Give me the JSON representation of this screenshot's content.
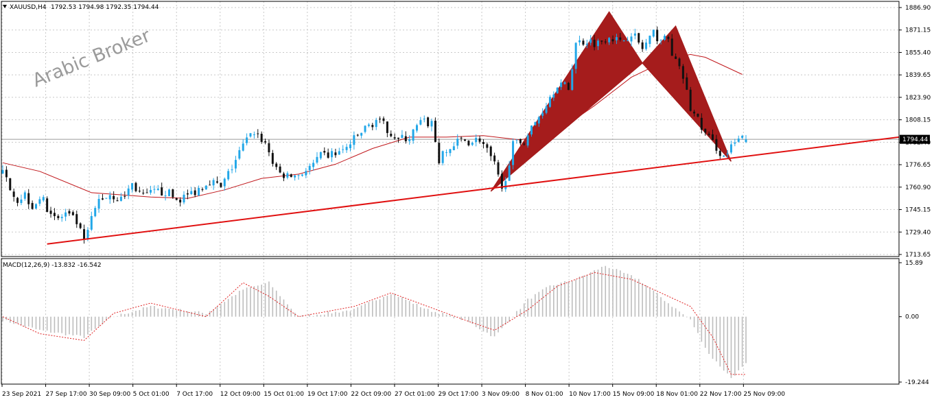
{
  "header": {
    "symbol_label": "XAUUSD,H4",
    "ohlc_label": "1792.53 1794.98 1792.35 1794.44",
    "macd_label": "MACD(12,26,9) -13.832 -16.542"
  },
  "watermark": "Arabic Broker",
  "colors": {
    "bull": "#22a7e8",
    "bear": "#111111",
    "ma": "#c0161a",
    "trendline": "#e01010",
    "pattern": "#a51c1c",
    "signal": "#e02020",
    "histogram": "#bdbdbd",
    "grid": "#c8c8c8",
    "price_box": "#000000"
  },
  "chart_data": [
    {
      "type": "candlestick",
      "title": "XAUUSD,H4",
      "timeframe": "H4",
      "ylim": [
        1713.65,
        1886.9
      ],
      "yticks": [
        "1886.90",
        "1871.15",
        "1855.40",
        "1839.65",
        "1823.90",
        "1808.15",
        "1792.40",
        "1776.65",
        "1760.90",
        "1745.15",
        "1729.40",
        "1713.65"
      ],
      "xticks": [
        "23 Sep 2021",
        "27 Sep 17:00",
        "30 Sep 09:00",
        "5 Oct 01:00",
        "7 Oct 17:00",
        "12 Oct 09:00",
        "15 Oct 01:00",
        "19 Oct 17:00",
        "22 Oct 09:00",
        "27 Oct 01:00",
        "29 Oct 17:00",
        "3 Nov 09:00",
        "8 Nov 01:00",
        "10 Nov 17:00",
        "15 Nov 09:00",
        "18 Nov 01:00",
        "22 Nov 17:00",
        "25 Nov 09:00"
      ],
      "last_price": "1794.44",
      "last_ohlc": [
        1792.53,
        1794.98,
        1792.35,
        1794.44
      ],
      "close_path": [
        [
          0,
          1770
        ],
        [
          2,
          1762
        ],
        [
          4,
          1752
        ],
        [
          6,
          1756
        ],
        [
          8,
          1748
        ],
        [
          10,
          1754
        ],
        [
          12,
          1747
        ],
        [
          15,
          1738
        ],
        [
          17,
          1742
        ],
        [
          20,
          1736
        ],
        [
          22,
          1722
        ],
        [
          24,
          1738
        ],
        [
          26,
          1752
        ],
        [
          29,
          1756
        ],
        [
          32,
          1752
        ],
        [
          35,
          1763
        ],
        [
          38,
          1754
        ],
        [
          41,
          1757
        ],
        [
          44,
          1758
        ],
        [
          47,
          1752
        ],
        [
          50,
          1755
        ],
        [
          53,
          1760
        ],
        [
          56,
          1766
        ],
        [
          59,
          1760
        ],
        [
          62,
          1775
        ],
        [
          65,
          1790
        ],
        [
          68,
          1800
        ],
        [
          71,
          1792
        ],
        [
          74,
          1772
        ],
        [
          77,
          1768
        ],
        [
          80,
          1770
        ],
        [
          83,
          1774
        ],
        [
          86,
          1782
        ],
        [
          89,
          1784
        ],
        [
          92,
          1786
        ],
        [
          95,
          1794
        ],
        [
          98,
          1802
        ],
        [
          101,
          1808
        ],
        [
          104,
          1802
        ],
        [
          107,
          1794
        ],
        [
          110,
          1796
        ],
        [
          113,
          1806
        ],
        [
          116,
          1806
        ],
        [
          118,
          1780
        ],
        [
          121,
          1788
        ],
        [
          124,
          1794
        ],
        [
          127,
          1793
        ],
        [
          129,
          1795
        ],
        [
          131,
          1786
        ],
        [
          133,
          1776
        ],
        [
          135,
          1758
        ],
        [
          138,
          1790
        ],
        [
          141,
          1794
        ],
        [
          144,
          1806
        ],
        [
          147,
          1820
        ],
        [
          150,
          1834
        ],
        [
          153,
          1830
        ],
        [
          155,
          1862
        ],
        [
          158,
          1864
        ],
        [
          161,
          1862
        ],
        [
          164,
          1868
        ],
        [
          167,
          1862
        ],
        [
          170,
          1870
        ],
        [
          173,
          1858
        ],
        [
          176,
          1868
        ],
        [
          178,
          1865
        ],
        [
          180,
          1864
        ],
        [
          182,
          1848
        ],
        [
          184,
          1838
        ],
        [
          186,
          1816
        ],
        [
          188,
          1808
        ],
        [
          190,
          1798
        ],
        [
          193,
          1789
        ],
        [
          195,
          1782
        ],
        [
          197,
          1788
        ],
        [
          199,
          1794
        ],
        [
          201,
          1794.44
        ]
      ],
      "moving_average": [
        [
          0,
          1778
        ],
        [
          10,
          1772
        ],
        [
          24,
          1757
        ],
        [
          40,
          1754
        ],
        [
          50,
          1753
        ],
        [
          60,
          1759
        ],
        [
          70,
          1767
        ],
        [
          80,
          1770
        ],
        [
          90,
          1777
        ],
        [
          100,
          1788
        ],
        [
          110,
          1796
        ],
        [
          120,
          1796
        ],
        [
          130,
          1797
        ],
        [
          140,
          1794
        ],
        [
          150,
          1800
        ],
        [
          160,
          1818
        ],
        [
          170,
          1838
        ],
        [
          178,
          1848
        ],
        [
          182,
          1852
        ],
        [
          186,
          1854
        ],
        [
          190,
          1852
        ],
        [
          195,
          1846
        ],
        [
          200,
          1840
        ]
      ],
      "trendline": [
        [
          12,
          1721
        ],
        [
          242,
          1796
        ]
      ],
      "harmonic_pattern": {
        "X": [
          132,
          1758
        ],
        "A": [
          164,
          1884
        ],
        "B": [
          173,
          1848
        ],
        "C": [
          182,
          1874
        ],
        "D": [
          197,
          1779
        ]
      }
    },
    {
      "type": "macd",
      "title": "MACD(12,26,9) -13.832 -16.542",
      "params": [
        12,
        26,
        9
      ],
      "macd_value": -13.832,
      "signal_value": -16.542,
      "ylim": [
        -19.244,
        15.89
      ],
      "yticks": [
        "15.89",
        "0.00",
        "-19.244"
      ],
      "histogram": [
        [
          0,
          -1
        ],
        [
          10,
          -4
        ],
        [
          22,
          -6
        ],
        [
          30,
          0
        ],
        [
          40,
          3
        ],
        [
          55,
          1
        ],
        [
          65,
          8
        ],
        [
          72,
          10
        ],
        [
          80,
          0
        ],
        [
          95,
          2
        ],
        [
          105,
          7
        ],
        [
          115,
          2
        ],
        [
          125,
          -1
        ],
        [
          133,
          -6
        ],
        [
          142,
          5
        ],
        [
          148,
          9
        ],
        [
          155,
          11
        ],
        [
          163,
          15
        ],
        [
          172,
          11
        ],
        [
          180,
          4
        ],
        [
          186,
          -1
        ],
        [
          191,
          -11
        ],
        [
          197,
          -18
        ],
        [
          201,
          -14
        ]
      ],
      "signal": [
        [
          0,
          0
        ],
        [
          10,
          -5
        ],
        [
          22,
          -7
        ],
        [
          30,
          1
        ],
        [
          40,
          4
        ],
        [
          55,
          0
        ],
        [
          65,
          10
        ],
        [
          72,
          6
        ],
        [
          80,
          0
        ],
        [
          95,
          3
        ],
        [
          105,
          7
        ],
        [
          115,
          3
        ],
        [
          125,
          -1
        ],
        [
          133,
          -4
        ],
        [
          142,
          2
        ],
        [
          150,
          9
        ],
        [
          160,
          13
        ],
        [
          170,
          11
        ],
        [
          180,
          6
        ],
        [
          186,
          3
        ],
        [
          192,
          -6
        ],
        [
          197,
          -17
        ],
        [
          201,
          -17
        ]
      ]
    }
  ]
}
